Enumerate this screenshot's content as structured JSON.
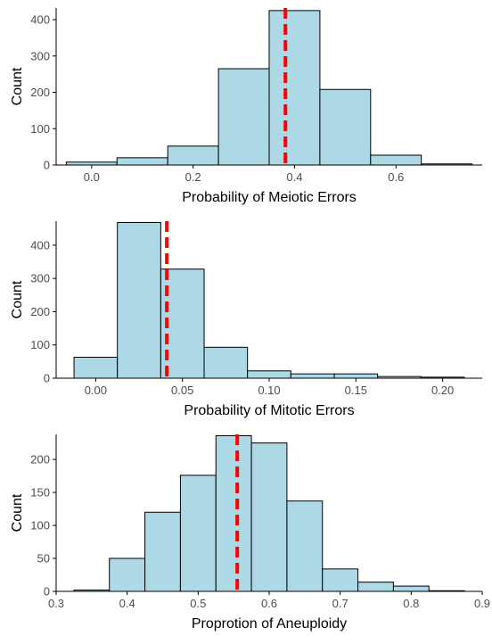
{
  "colors": {
    "bar_fill": "#add8e6",
    "bar_stroke": "#000000",
    "mean_line": "#ff0000",
    "axis": "#000000"
  },
  "chart_data": [
    {
      "type": "bar",
      "xlabel": "Probability of Meiotic Errors",
      "ylabel": "Count",
      "bins": [
        {
          "x0": -0.05,
          "x1": 0.05,
          "count": 8
        },
        {
          "x0": 0.05,
          "x1": 0.15,
          "count": 20
        },
        {
          "x0": 0.15,
          "x1": 0.25,
          "count": 52
        },
        {
          "x0": 0.25,
          "x1": 0.35,
          "count": 265
        },
        {
          "x0": 0.35,
          "x1": 0.45,
          "count": 425
        },
        {
          "x0": 0.45,
          "x1": 0.55,
          "count": 208
        },
        {
          "x0": 0.55,
          "x1": 0.65,
          "count": 27
        },
        {
          "x0": 0.65,
          "x1": 0.75,
          "count": 3
        }
      ],
      "mean_line_x": 0.382,
      "xlim": [
        -0.07,
        0.77
      ],
      "ylim": [
        0,
        432
      ],
      "x_ticks": [
        {
          "value": 0.0,
          "label": "0.0"
        },
        {
          "value": 0.2,
          "label": "0.2"
        },
        {
          "value": 0.4,
          "label": "0.4"
        },
        {
          "value": 0.6,
          "label": "0.6"
        }
      ],
      "y_ticks": [
        {
          "value": 0,
          "label": "0"
        },
        {
          "value": 100,
          "label": "100"
        },
        {
          "value": 200,
          "label": "200"
        },
        {
          "value": 300,
          "label": "300"
        },
        {
          "value": 400,
          "label": "400"
        }
      ],
      "grid": false,
      "legend": "none"
    },
    {
      "type": "bar",
      "xlabel": "Probability of Mitotic Errors",
      "ylabel": "Count",
      "bins": [
        {
          "x0": -0.0125,
          "x1": 0.0125,
          "count": 63
        },
        {
          "x0": 0.0125,
          "x1": 0.0375,
          "count": 468
        },
        {
          "x0": 0.0375,
          "x1": 0.0625,
          "count": 328
        },
        {
          "x0": 0.0625,
          "x1": 0.0875,
          "count": 93
        },
        {
          "x0": 0.0875,
          "x1": 0.1125,
          "count": 22
        },
        {
          "x0": 0.1125,
          "x1": 0.1375,
          "count": 13
        },
        {
          "x0": 0.1375,
          "x1": 0.1625,
          "count": 13
        },
        {
          "x0": 0.1625,
          "x1": 0.1875,
          "count": 5
        },
        {
          "x0": 0.1875,
          "x1": 0.2125,
          "count": 3
        }
      ],
      "mean_line_x": 0.041,
      "xlim": [
        -0.0228,
        0.2228
      ],
      "ylim": [
        0,
        472
      ],
      "x_ticks": [
        {
          "value": 0.0,
          "label": "0.00"
        },
        {
          "value": 0.05,
          "label": "0.05"
        },
        {
          "value": 0.1,
          "label": "0.10"
        },
        {
          "value": 0.15,
          "label": "0.15"
        },
        {
          "value": 0.2,
          "label": "0.20"
        }
      ],
      "y_ticks": [
        {
          "value": 0,
          "label": "0"
        },
        {
          "value": 100,
          "label": "100"
        },
        {
          "value": 200,
          "label": "200"
        },
        {
          "value": 300,
          "label": "300"
        },
        {
          "value": 400,
          "label": "400"
        }
      ],
      "grid": false,
      "legend": "none"
    },
    {
      "type": "bar",
      "xlabel": "Proprotion of Aneuploidy",
      "ylabel": "Count",
      "bins": [
        {
          "x0": 0.325,
          "x1": 0.375,
          "count": 2
        },
        {
          "x0": 0.375,
          "x1": 0.425,
          "count": 50
        },
        {
          "x0": 0.425,
          "x1": 0.475,
          "count": 120
        },
        {
          "x0": 0.475,
          "x1": 0.525,
          "count": 176
        },
        {
          "x0": 0.525,
          "x1": 0.575,
          "count": 236
        },
        {
          "x0": 0.575,
          "x1": 0.625,
          "count": 225
        },
        {
          "x0": 0.625,
          "x1": 0.675,
          "count": 137
        },
        {
          "x0": 0.675,
          "x1": 0.725,
          "count": 34
        },
        {
          "x0": 0.725,
          "x1": 0.775,
          "count": 14
        },
        {
          "x0": 0.775,
          "x1": 0.825,
          "count": 8
        },
        {
          "x0": 0.825,
          "x1": 0.875,
          "count": 1
        }
      ],
      "mean_line_x": 0.555,
      "xlim": [
        0.3,
        0.9
      ],
      "ylim": [
        0,
        238
      ],
      "x_ticks": [
        {
          "value": 0.3,
          "label": "0.3"
        },
        {
          "value": 0.4,
          "label": "0.4"
        },
        {
          "value": 0.5,
          "label": "0.5"
        },
        {
          "value": 0.6,
          "label": "0.6"
        },
        {
          "value": 0.7,
          "label": "0.7"
        },
        {
          "value": 0.8,
          "label": "0.8"
        },
        {
          "value": 0.9,
          "label": "0.9"
        }
      ],
      "y_ticks": [
        {
          "value": 0,
          "label": "0"
        },
        {
          "value": 50,
          "label": "50"
        },
        {
          "value": 100,
          "label": "100"
        },
        {
          "value": 150,
          "label": "150"
        },
        {
          "value": 200,
          "label": "200"
        }
      ],
      "grid": false,
      "legend": "none"
    }
  ]
}
